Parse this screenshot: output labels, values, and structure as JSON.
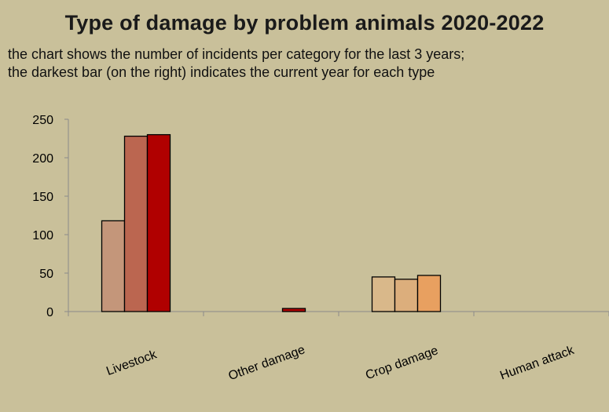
{
  "chart_data": {
    "type": "bar",
    "title": "Type of damage by problem animals 2020-2022",
    "subtitle_lines": [
      "the chart shows the number of incidents per category for the last 3 years;",
      "the darkest bar (on the right) indicates the current year for each type"
    ],
    "categories": [
      "Livestock",
      "Other damage",
      "Crop damage",
      "Human attack"
    ],
    "series": [
      {
        "values": [
          118,
          0,
          45,
          0
        ]
      },
      {
        "values": [
          228,
          0,
          42,
          0
        ]
      },
      {
        "values": [
          230,
          4,
          47,
          0
        ]
      }
    ],
    "bar_colors": [
      [
        "#c4967a",
        "#bb6650",
        "#b00000"
      ],
      [
        "#c4967a",
        "#bb6650",
        "#b00000"
      ],
      [
        "#d9b88a",
        "#dcae7c",
        "#e8a060"
      ],
      [
        "#c4967a",
        "#bb6650",
        "#b00000"
      ]
    ],
    "ylim": [
      0,
      250
    ],
    "yticks": [
      0,
      50,
      100,
      150,
      200,
      250
    ],
    "grid": false,
    "xlabel": "",
    "ylabel": ""
  }
}
